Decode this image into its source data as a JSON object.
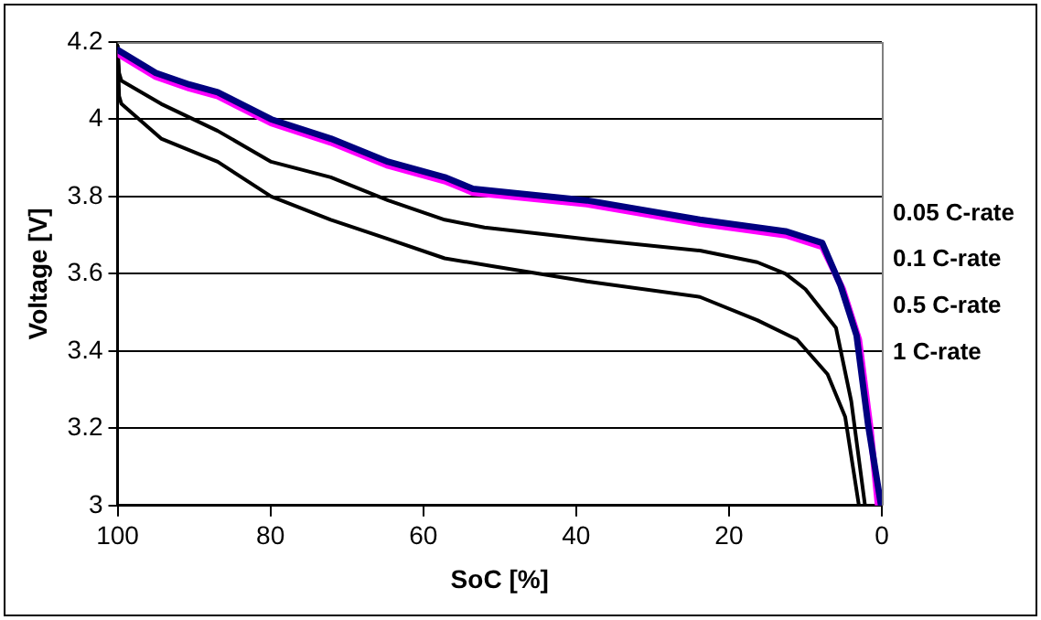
{
  "chart_data": {
    "type": "line",
    "xlabel": "SoC [%]",
    "ylabel": "Voltage [V]",
    "xlim": [
      100,
      0
    ],
    "xticks": [
      100,
      80,
      60,
      40,
      20,
      0
    ],
    "ylim": [
      3,
      4.2
    ],
    "yticks": [
      3,
      3.2,
      3.4,
      3.6,
      3.8,
      4,
      4.2
    ],
    "grid": "y",
    "series": [
      {
        "name": "0.05 C-rate",
        "color": "#000080",
        "x": [
          100,
          95,
          90.6,
          86.9,
          79.9,
          72.1,
          64.6,
          57.2,
          53.5,
          38.6,
          23.8,
          12.6,
          7.8,
          5.4,
          3.3,
          1.8,
          0.1
        ],
        "values": [
          4.18,
          4.12,
          4.09,
          4.07,
          4.0,
          3.95,
          3.89,
          3.85,
          3.82,
          3.79,
          3.74,
          3.71,
          3.68,
          3.57,
          3.44,
          3.21,
          3.0
        ]
      },
      {
        "name": "0.1 C-rate",
        "color": "#ff00ff",
        "x": [
          100,
          95,
          90.6,
          86.9,
          79.9,
          72.1,
          64.6,
          57.2,
          53.5,
          38.6,
          23.8,
          12.6,
          7.8,
          5.1,
          3.0,
          1.5,
          0.5
        ],
        "values": [
          4.17,
          4.11,
          4.08,
          4.06,
          3.99,
          3.94,
          3.88,
          3.84,
          3.81,
          3.78,
          3.73,
          3.7,
          3.67,
          3.56,
          3.43,
          3.2,
          3.0
        ]
      },
      {
        "name": "0.5 C-rate",
        "color": "#000000",
        "x": [
          100,
          99.8,
          99.5,
          94.3,
          86.9,
          79.9,
          72.1,
          64.6,
          57.2,
          52,
          38.6,
          23.8,
          16.3,
          12.6,
          10,
          6,
          4,
          2.2
        ],
        "values": [
          4.19,
          4.12,
          4.1,
          4.04,
          3.97,
          3.89,
          3.85,
          3.79,
          3.74,
          3.72,
          3.69,
          3.66,
          3.63,
          3.6,
          3.56,
          3.46,
          3.27,
          3.0
        ]
      },
      {
        "name": "1 C-rate",
        "color": "#000000",
        "x": [
          100,
          99.8,
          99.5,
          94.3,
          86.9,
          79.9,
          72.1,
          64.6,
          57.2,
          51,
          38.6,
          23.8,
          16.3,
          11.1,
          7.1,
          4.8,
          3.0
        ],
        "values": [
          4.19,
          4.06,
          4.04,
          3.95,
          3.89,
          3.8,
          3.74,
          3.69,
          3.64,
          3.62,
          3.58,
          3.54,
          3.48,
          3.43,
          3.34,
          3.23,
          3.0
        ]
      }
    ]
  }
}
